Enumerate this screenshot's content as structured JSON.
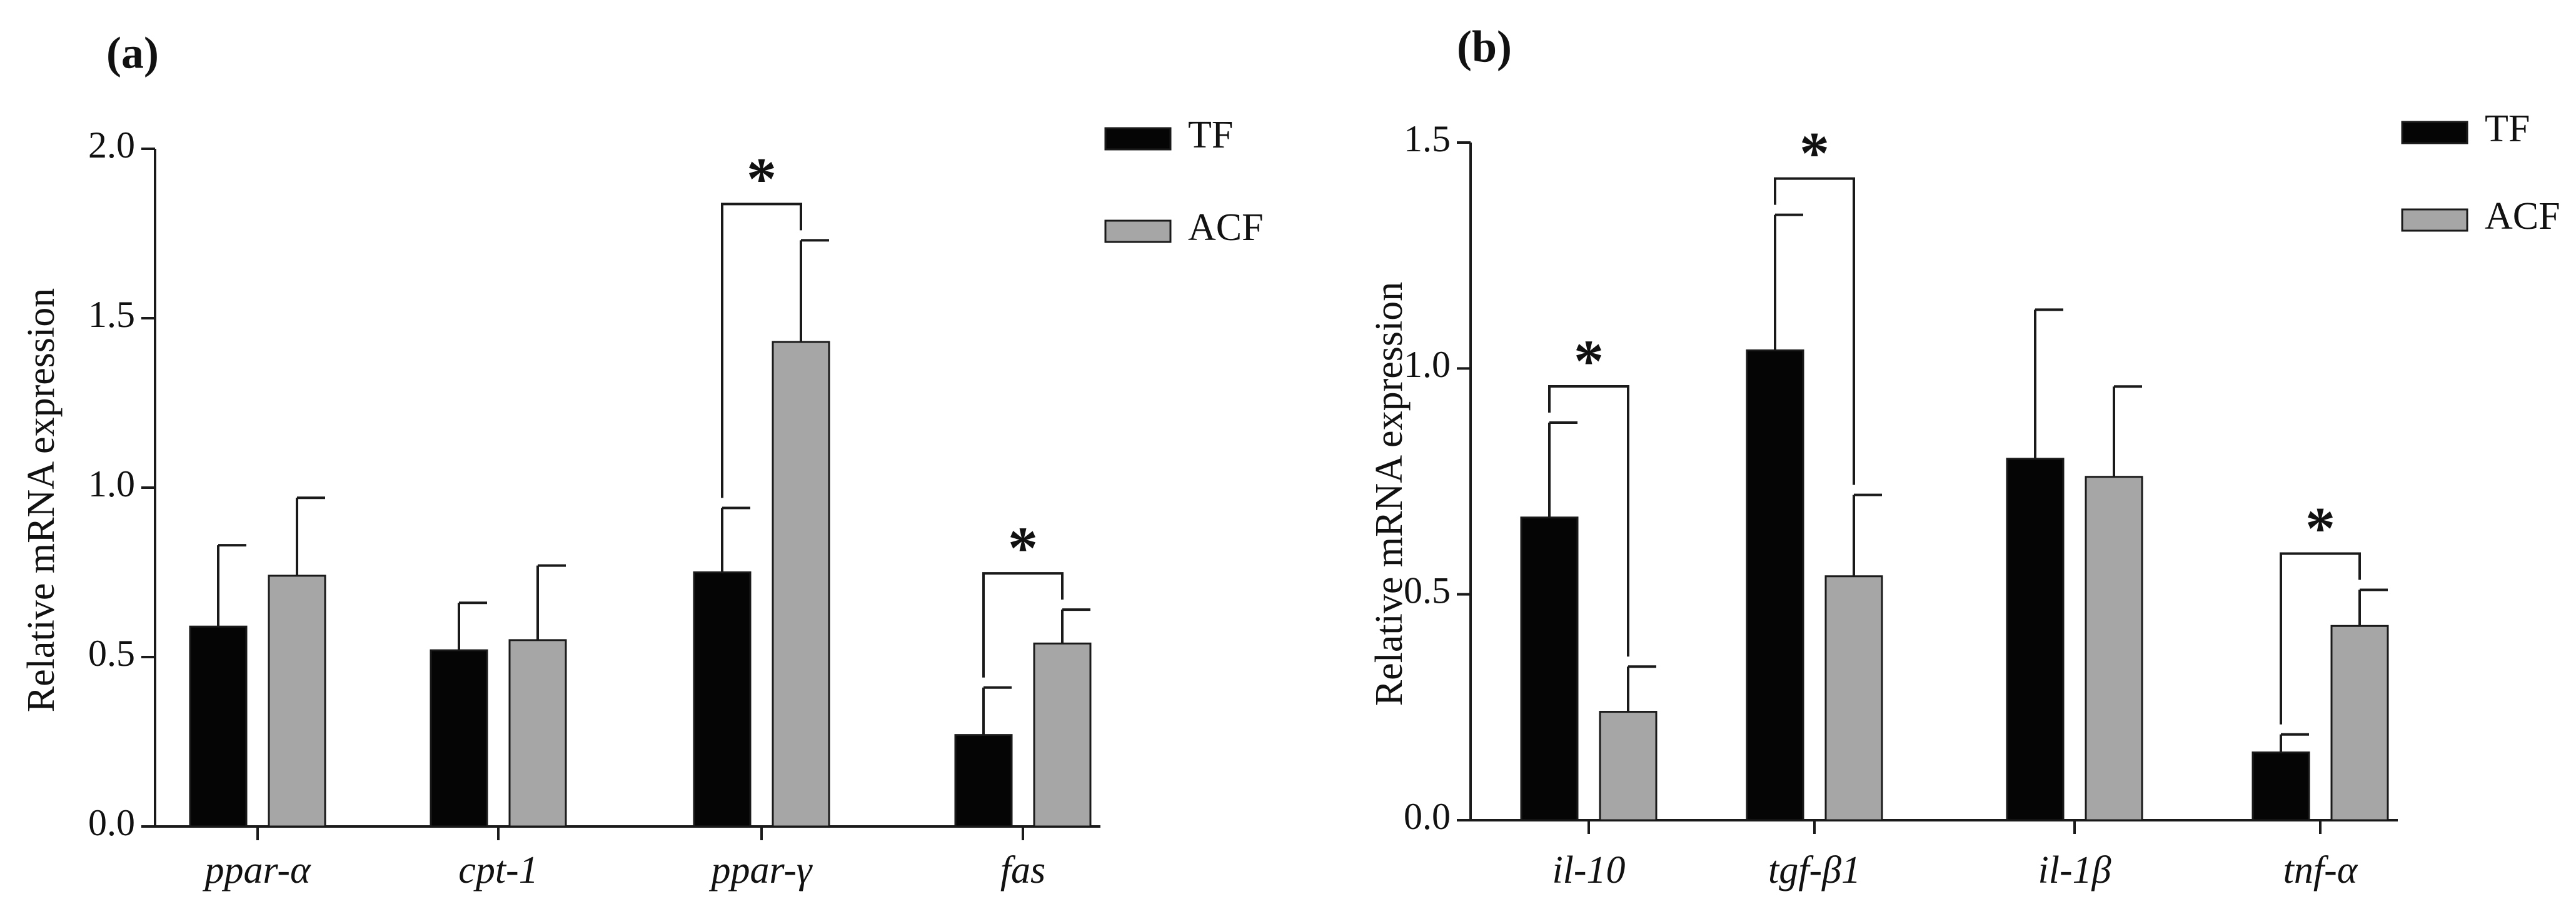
{
  "colors": {
    "TF": "#050505",
    "ACF": "#a6a6a6",
    "axis": "#1a1a1a"
  },
  "chart_data": [
    {
      "panel_label": "(a)",
      "type": "bar",
      "ylabel": "Relative mRNA expression",
      "ylim": [
        0,
        2.0
      ],
      "yticks": [
        "0.0",
        "0.5",
        "1.0",
        "1.5",
        "2.0"
      ],
      "categories": [
        "ppar-α",
        "cpt-1",
        "ppar-γ",
        "fas"
      ],
      "series": [
        {
          "name": "TF",
          "values": [
            0.59,
            0.52,
            0.75,
            0.27
          ],
          "errors": [
            0.24,
            0.14,
            0.19,
            0.14
          ]
        },
        {
          "name": "ACF",
          "values": [
            0.74,
            0.55,
            1.43,
            0.54
          ],
          "errors": [
            0.23,
            0.22,
            0.3,
            0.1
          ]
        }
      ],
      "significance": [
        {
          "category": "ppar-γ",
          "label": "*"
        },
        {
          "category": "fas",
          "label": "*"
        }
      ],
      "legend": [
        "TF",
        "ACF"
      ],
      "legend_position": "top-right"
    },
    {
      "panel_label": "(b)",
      "type": "bar",
      "ylabel": "Relative mRNA expression",
      "ylim": [
        0,
        1.5
      ],
      "yticks": [
        "0.0",
        "0.5",
        "1.0",
        "1.5"
      ],
      "categories": [
        "il-10",
        "tgf-β1",
        "il-1β",
        "tnf-α"
      ],
      "series": [
        {
          "name": "TF",
          "values": [
            0.67,
            1.04,
            0.8,
            0.15
          ],
          "errors": [
            0.21,
            0.3,
            0.33,
            0.04
          ]
        },
        {
          "name": "ACF",
          "values": [
            0.24,
            0.54,
            0.76,
            0.43
          ],
          "errors": [
            0.1,
            0.18,
            0.2,
            0.08
          ]
        }
      ],
      "significance": [
        {
          "category": "il-10",
          "label": "*"
        },
        {
          "category": "tgf-β1",
          "label": "*"
        },
        {
          "category": "tnf-α",
          "label": "*"
        }
      ],
      "legend": [
        "TF",
        "ACF"
      ],
      "legend_position": "top-right"
    }
  ]
}
